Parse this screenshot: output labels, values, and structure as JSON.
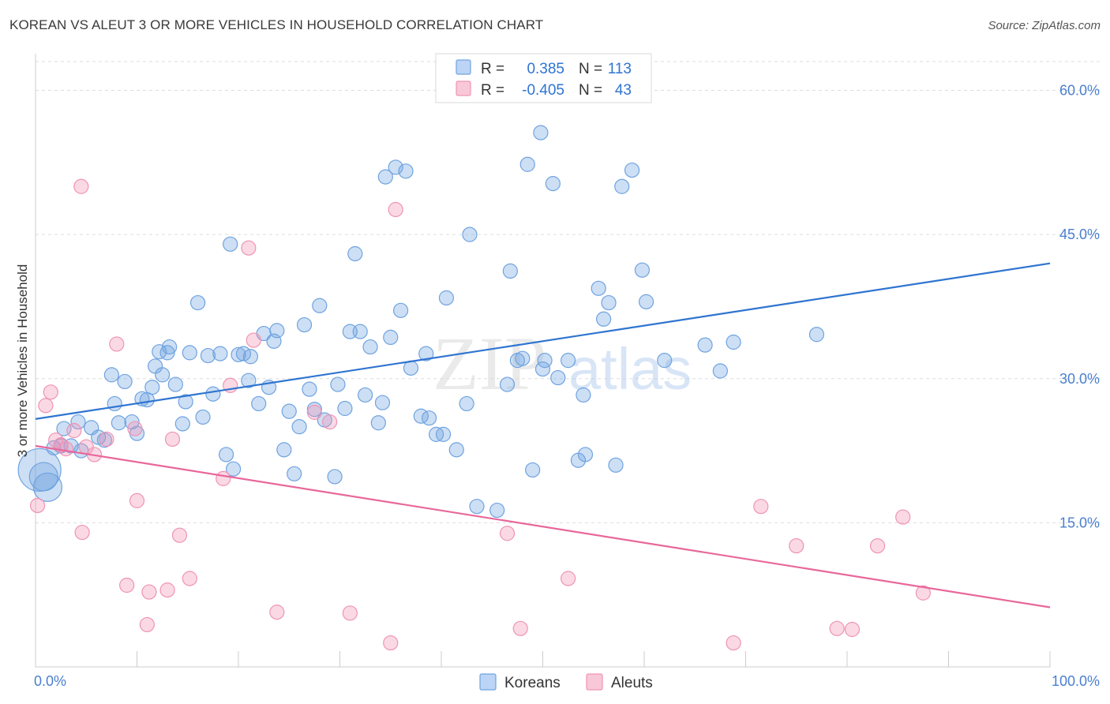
{
  "title": "KOREAN VS ALEUT 3 OR MORE VEHICLES IN HOUSEHOLD CORRELATION CHART",
  "source": "Source: ZipAtlas.com",
  "watermark": {
    "zip": "ZIP",
    "atlas": "atlas"
  },
  "chart_data": {
    "type": "scatter",
    "ylabel": "3 or more Vehicles in Household",
    "xlim": [
      0,
      100
    ],
    "ylim": [
      0,
      63
    ],
    "x_ticks": [
      "0.0%",
      "100.0%"
    ],
    "y_ticks": [
      {
        "value": 15,
        "label": "15.0%"
      },
      {
        "value": 30,
        "label": "30.0%"
      },
      {
        "value": 45,
        "label": "45.0%"
      },
      {
        "value": 60,
        "label": "60.0%"
      }
    ],
    "grid": true,
    "legend": {
      "placement": "top-center",
      "rows": [
        {
          "r_label": "R =",
          "r_value": "0.385",
          "n_label": "N =",
          "n_value": "113"
        },
        {
          "r_label": "R =",
          "r_value": "-0.405",
          "n_label": "N =",
          "n_value": "43"
        }
      ]
    },
    "series": [
      {
        "name": "Koreans",
        "color": "#6fa3e0",
        "line_color": "#2f74d0",
        "trend": {
          "x": [
            0,
            100
          ],
          "y": [
            25.8,
            42.0
          ]
        },
        "points": [
          [
            0.4,
            20.5
          ],
          [
            0.8,
            19.8
          ],
          [
            1.2,
            18.7
          ],
          [
            1.8,
            22.8
          ],
          [
            2.5,
            23.0
          ],
          [
            2.8,
            24.8
          ],
          [
            3.5,
            23.0
          ],
          [
            4.2,
            25.5
          ],
          [
            4.5,
            22.5
          ],
          [
            5.5,
            24.9
          ],
          [
            6.2,
            23.9
          ],
          [
            6.8,
            23.6
          ],
          [
            7.5,
            30.4
          ],
          [
            7.8,
            27.4
          ],
          [
            8.2,
            25.4
          ],
          [
            8.8,
            29.7
          ],
          [
            9.5,
            25.5
          ],
          [
            10.0,
            24.3
          ],
          [
            10.5,
            27.9
          ],
          [
            11.0,
            27.8
          ],
          [
            11.5,
            29.1
          ],
          [
            11.8,
            31.3
          ],
          [
            12.2,
            32.8
          ],
          [
            12.5,
            30.4
          ],
          [
            13.0,
            32.7
          ],
          [
            13.2,
            33.3
          ],
          [
            13.8,
            29.4
          ],
          [
            14.5,
            25.3
          ],
          [
            14.8,
            27.6
          ],
          [
            15.2,
            32.7
          ],
          [
            16.0,
            37.9
          ],
          [
            16.5,
            26.0
          ],
          [
            17.0,
            32.4
          ],
          [
            17.5,
            28.4
          ],
          [
            18.2,
            32.6
          ],
          [
            18.8,
            22.1
          ],
          [
            19.2,
            44.0
          ],
          [
            19.5,
            20.6
          ],
          [
            20.0,
            32.5
          ],
          [
            20.5,
            32.6
          ],
          [
            21.0,
            29.8
          ],
          [
            21.2,
            32.3
          ],
          [
            22.0,
            27.4
          ],
          [
            22.5,
            34.7
          ],
          [
            23.0,
            29.1
          ],
          [
            23.5,
            33.9
          ],
          [
            23.8,
            35.0
          ],
          [
            24.5,
            22.6
          ],
          [
            25.0,
            26.6
          ],
          [
            25.5,
            20.1
          ],
          [
            26.0,
            25.0
          ],
          [
            26.5,
            35.6
          ],
          [
            27.0,
            28.9
          ],
          [
            27.5,
            26.8
          ],
          [
            28.0,
            37.6
          ],
          [
            28.5,
            25.7
          ],
          [
            29.5,
            19.8
          ],
          [
            29.8,
            29.4
          ],
          [
            30.5,
            26.9
          ],
          [
            31.0,
            34.9
          ],
          [
            31.5,
            43.0
          ],
          [
            32.0,
            34.9
          ],
          [
            32.5,
            28.3
          ],
          [
            33.0,
            33.3
          ],
          [
            33.8,
            25.4
          ],
          [
            34.2,
            27.5
          ],
          [
            34.5,
            51.0
          ],
          [
            35.0,
            34.3
          ],
          [
            35.5,
            52.0
          ],
          [
            36.0,
            37.1
          ],
          [
            36.5,
            51.6
          ],
          [
            37.0,
            31.1
          ],
          [
            38.0,
            26.1
          ],
          [
            38.5,
            32.6
          ],
          [
            38.8,
            25.9
          ],
          [
            39.5,
            24.2
          ],
          [
            40.2,
            24.2
          ],
          [
            40.5,
            38.4
          ],
          [
            41.5,
            22.6
          ],
          [
            42.5,
            27.4
          ],
          [
            42.8,
            45.0
          ],
          [
            43.5,
            16.7
          ],
          [
            45.5,
            16.3
          ],
          [
            46.5,
            29.4
          ],
          [
            46.8,
            41.2
          ],
          [
            47.5,
            31.9
          ],
          [
            48.0,
            32.1
          ],
          [
            48.5,
            52.3
          ],
          [
            49.0,
            20.5
          ],
          [
            49.8,
            55.6
          ],
          [
            50.0,
            31.0
          ],
          [
            50.2,
            31.9
          ],
          [
            51.0,
            50.3
          ],
          [
            51.5,
            30.1
          ],
          [
            52.5,
            31.9
          ],
          [
            53.5,
            21.5
          ],
          [
            54.0,
            28.3
          ],
          [
            54.2,
            22.1
          ],
          [
            55.5,
            39.4
          ],
          [
            56.0,
            36.2
          ],
          [
            56.5,
            37.9
          ],
          [
            57.2,
            21.0
          ],
          [
            57.8,
            50.0
          ],
          [
            58.8,
            51.7
          ],
          [
            59.8,
            41.3
          ],
          [
            60.2,
            38.0
          ],
          [
            62.0,
            31.9
          ],
          [
            66.0,
            33.5
          ],
          [
            67.5,
            30.8
          ],
          [
            68.8,
            33.8
          ],
          [
            77.0,
            34.6
          ]
        ]
      },
      {
        "name": "Aleuts",
        "color": "#f093b4",
        "line_color": "#e8679a",
        "trend": {
          "x": [
            0,
            100
          ],
          "y": [
            23.0,
            6.2
          ]
        },
        "points": [
          [
            0.2,
            16.8
          ],
          [
            1.0,
            27.2
          ],
          [
            1.5,
            28.6
          ],
          [
            2.0,
            23.6
          ],
          [
            2.5,
            23.1
          ],
          [
            3.0,
            22.7
          ],
          [
            3.8,
            24.6
          ],
          [
            4.5,
            50.0
          ],
          [
            4.6,
            14.0
          ],
          [
            5.0,
            22.9
          ],
          [
            5.8,
            22.1
          ],
          [
            7.0,
            23.7
          ],
          [
            8.0,
            33.6
          ],
          [
            9.8,
            24.8
          ],
          [
            9.0,
            8.5
          ],
          [
            10.0,
            17.3
          ],
          [
            11.0,
            4.4
          ],
          [
            11.2,
            7.8
          ],
          [
            13.0,
            8.0
          ],
          [
            13.5,
            23.7
          ],
          [
            14.2,
            13.7
          ],
          [
            15.2,
            9.2
          ],
          [
            18.5,
            19.6
          ],
          [
            19.2,
            29.3
          ],
          [
            21.0,
            43.6
          ],
          [
            21.5,
            34.0
          ],
          [
            23.8,
            5.7
          ],
          [
            27.5,
            26.5
          ],
          [
            29.0,
            25.5
          ],
          [
            31.0,
            5.6
          ],
          [
            35.0,
            2.5
          ],
          [
            35.5,
            47.6
          ],
          [
            46.5,
            13.9
          ],
          [
            47.8,
            4.0
          ],
          [
            52.5,
            9.2
          ],
          [
            68.8,
            2.5
          ],
          [
            71.5,
            16.7
          ],
          [
            75.0,
            12.6
          ],
          [
            79.0,
            4.0
          ],
          [
            80.5,
            3.9
          ],
          [
            83.0,
            12.6
          ],
          [
            85.5,
            15.6
          ],
          [
            87.5,
            7.7
          ]
        ]
      }
    ],
    "bubble_sizes": {
      "Koreans": {
        "0": 3.0,
        "1": 2.0,
        "2": 2.0
      }
    }
  }
}
